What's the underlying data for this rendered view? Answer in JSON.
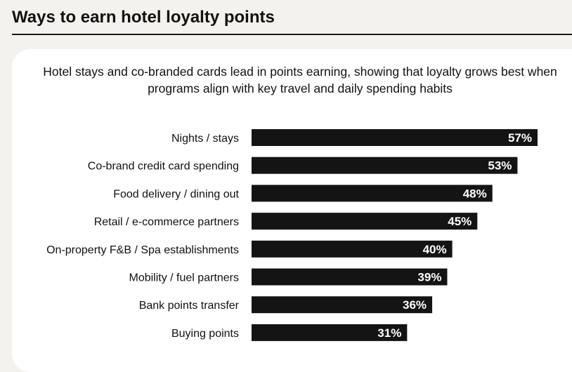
{
  "page": {
    "title": "Ways to earn hotel loyalty points"
  },
  "chart_data": {
    "type": "bar",
    "orientation": "horizontal",
    "subtitle": "Hotel stays and co-branded cards lead in points earning, showing that loyalty grows best when programs align with key travel and daily spending habits",
    "categories": [
      "Nights / stays",
      "Co-brand credit card spending",
      "Food delivery / dining out",
      "Retail / e-commerce partners",
      "On-property F&B / Spa establishments",
      "Mobility / fuel partners",
      "Bank points transfer",
      "Buying points"
    ],
    "values": [
      57,
      53,
      48,
      45,
      40,
      39,
      36,
      31
    ],
    "value_labels": [
      "57%",
      "53%",
      "48%",
      "45%",
      "40%",
      "39%",
      "36%",
      "31%"
    ],
    "xlim": [
      0,
      100
    ],
    "grid": false,
    "bar_color": "#141414"
  }
}
